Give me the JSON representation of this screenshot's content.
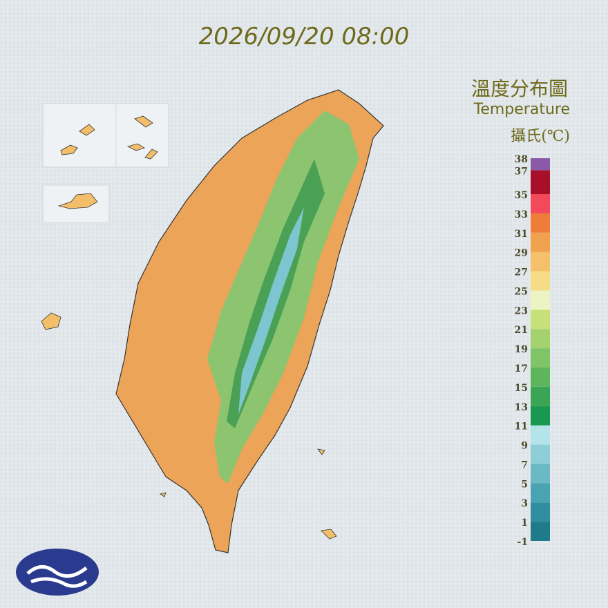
{
  "header": {
    "timestamp": "2026/09/20 08:00",
    "title": "溫度分布圖",
    "subtitle": "Temperature",
    "unit": "攝氏(℃)"
  },
  "legend": {
    "ticks": [
      -1,
      1,
      3,
      5,
      7,
      9,
      11,
      13,
      15,
      17,
      19,
      21,
      23,
      25,
      27,
      29,
      31,
      33,
      35,
      37,
      38
    ],
    "colors": [
      "#1f7a8a",
      "#2f8f9e",
      "#4aa3b0",
      "#6bb9c4",
      "#8ecfd7",
      "#b4e4ea",
      "#1a9850",
      "#3aa655",
      "#5db65e",
      "#80c468",
      "#a3d26f",
      "#c6e07a",
      "#eef3c4",
      "#f7dc86",
      "#f4c06a",
      "#f0a24f",
      "#ef7d3a",
      "#f24a5a",
      "#a8102a",
      "#8a5aa8"
    ]
  }
}
